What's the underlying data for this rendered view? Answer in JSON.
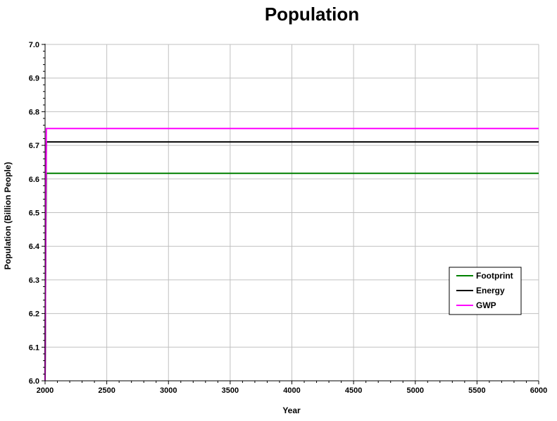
{
  "chart_data": {
    "type": "line",
    "title": "Population",
    "xlabel": "Year",
    "ylabel": "Population (Billion People)",
    "xlim": [
      2000,
      6000
    ],
    "ylim": [
      6.0,
      7.0
    ],
    "xticks": [
      2000,
      2500,
      3000,
      3500,
      4000,
      4500,
      5000,
      5500,
      6000
    ],
    "yticks": [
      "6.0",
      "6.1",
      "6.2",
      "6.3",
      "6.4",
      "6.5",
      "6.6",
      "6.7",
      "6.8",
      "6.9",
      "7.0"
    ],
    "grid": true,
    "legend_position": "bottom-right",
    "series": [
      {
        "name": "Footprint",
        "color": "#008000",
        "x": [
          2000,
          2005,
          2010,
          6000
        ],
        "y": [
          6.0,
          6.4,
          6.617,
          6.617
        ]
      },
      {
        "name": "Energy",
        "color": "#000000",
        "x": [
          2000,
          2005,
          2010,
          6000
        ],
        "y": [
          6.0,
          6.45,
          6.71,
          6.71
        ]
      },
      {
        "name": "GWP",
        "color": "#ff00ff",
        "x": [
          2000,
          2005,
          2010,
          6000
        ],
        "y": [
          6.0,
          6.5,
          6.75,
          6.75
        ]
      }
    ]
  }
}
